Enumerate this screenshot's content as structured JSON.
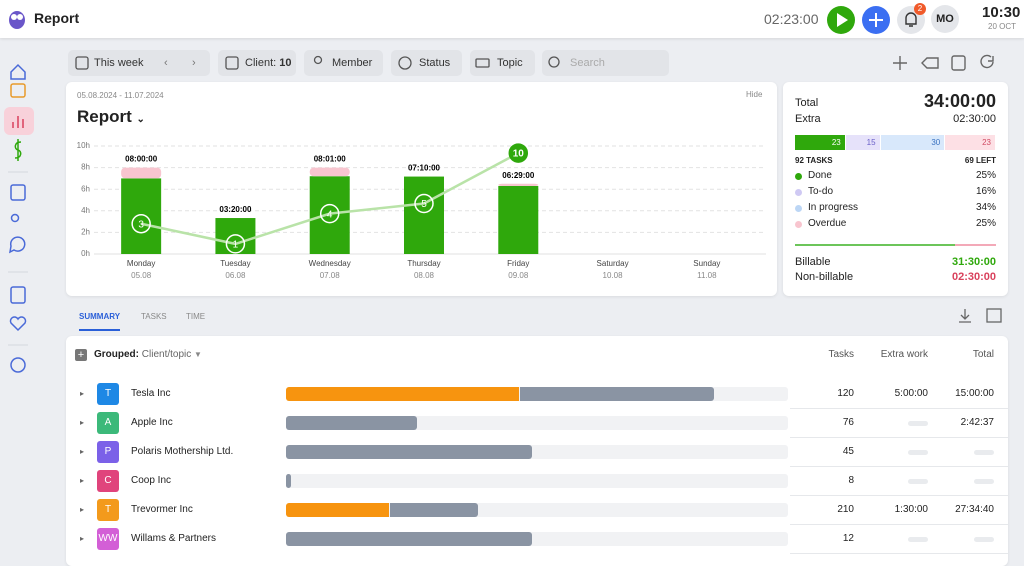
{
  "topbar": {
    "title": "Report",
    "timer": "02:23:00",
    "notifications": "2",
    "avatar": "MO",
    "clock": "10:30",
    "date": "20 OCT"
  },
  "filters": {
    "period": "This week",
    "client_label": "Client:",
    "client_count": "10",
    "member": "Member",
    "status": "Status",
    "topic": "Topic",
    "search": "Search"
  },
  "report_card": {
    "range": "05.08.2024 - 11.07.2024",
    "hide": "Hide",
    "title": "Report"
  },
  "chart_data": {
    "type": "bar",
    "stacked": true,
    "categories": [
      "Monday",
      "Tuesday",
      "Wednesday",
      "Thursday",
      "Friday",
      "Saturday",
      "Sunday"
    ],
    "dates": [
      "05.08",
      "06.08",
      "07.08",
      "08.08",
      "09.08",
      "10.08",
      "11.08"
    ],
    "series": [
      {
        "color": "#2fa80c",
        "values": [
          7.0,
          3.33,
          7.2,
          7.17,
          6.3,
          null,
          null
        ]
      },
      {
        "color": "#f8c5cf",
        "values": [
          1.0,
          null,
          0.8,
          null,
          0.2,
          null,
          null
        ]
      }
    ],
    "totals": [
      8,
      3.33,
      8.02,
      7.17,
      6.48,
      null,
      null
    ],
    "total_labels": [
      "08:00:00",
      "03:20:00",
      "08:01:00",
      "07:10:00",
      "06:29:00",
      null,
      null
    ],
    "line": {
      "color": "#b9e3a8",
      "axis": "y2",
      "values": [
        3,
        1,
        4,
        5,
        10,
        null,
        null
      ]
    },
    "ylim": [
      0,
      10
    ],
    "yticks": [
      {
        "value": 0,
        "label": "0h"
      },
      {
        "value": 2,
        "label": "2h"
      },
      {
        "value": 4,
        "label": "4h"
      },
      {
        "value": 6,
        "label": "6h"
      },
      {
        "value": 8,
        "label": "8h"
      },
      {
        "value": 10,
        "label": "10h"
      }
    ],
    "y2lim": [
      0,
      10.7
    ],
    "grid": true
  },
  "summary": {
    "total_label": "Total",
    "total": "34:00:00",
    "extra_label": "Extra",
    "extra": "02:30:00",
    "segments": [
      {
        "value": 23,
        "color": "#2fa80c",
        "text": "#ffffff"
      },
      {
        "value": 15,
        "color": "#e6e2fa",
        "text": "#6a5fc8"
      },
      {
        "value": 30,
        "color": "#d8e8fb",
        "text": "#3a72c0"
      },
      {
        "value": 23,
        "color": "#fde0e5",
        "text": "#d04a62"
      }
    ],
    "tasks": "92 TASKS",
    "left": "69 LEFT",
    "statuses": [
      {
        "name": "Done",
        "color": "#2fa80c",
        "percent": "25%"
      },
      {
        "name": "To-do",
        "color": "#cfc9f3",
        "percent": "16%"
      },
      {
        "name": "In progress",
        "color": "#bcd6f5",
        "percent": "34%"
      },
      {
        "name": "Overdue",
        "color": "#f8c5cf",
        "percent": "25%"
      }
    ],
    "billable_label": "Billable",
    "billable": "31:30:00",
    "nonbillable_label": "Non-billable",
    "nonbillable": "02:30:00"
  },
  "tabs": [
    "SUMMARY",
    "TASKS",
    "TIME"
  ],
  "table": {
    "grouped_label": "Grouped:",
    "grouped_value": "Client/topic",
    "columns": [
      "Tasks",
      "Extra work",
      "Total"
    ],
    "rows": [
      {
        "initial": "T",
        "color": "#1e88e5",
        "name": "Tesla Inc",
        "extra_share": 46.5,
        "base_share": 38.5,
        "tasks": "120",
        "extra_work": "5:00:00",
        "total": "15:00:00"
      },
      {
        "initial": "A",
        "color": "#3cb97a",
        "name": "Apple Inc",
        "extra_share": 0,
        "base_share": 26,
        "tasks": "76",
        "extra_work": null,
        "total": "2:42:37"
      },
      {
        "initial": "P",
        "color": "#7b61e8",
        "name": "Polaris Mothership Ltd.",
        "extra_share": 0,
        "base_share": 49,
        "tasks": "45",
        "extra_work": null,
        "total": null
      },
      {
        "initial": "C",
        "color": "#e0447c",
        "name": "Coop Inc",
        "extra_share": 0,
        "base_share": 1,
        "tasks": "8",
        "extra_work": null,
        "total": null
      },
      {
        "initial": "T",
        "color": "#f39a1c",
        "name": "Trevormer Inc",
        "extra_share": 20.5,
        "base_share": 17.5,
        "tasks": "210",
        "extra_work": "1:30:00",
        "total": "27:34:40"
      },
      {
        "initial": "WW",
        "color": "#d35fd6",
        "name": "Willams & Partners",
        "extra_share": 0,
        "base_share": 49,
        "tasks": "12",
        "extra_work": null,
        "total": null
      }
    ]
  }
}
